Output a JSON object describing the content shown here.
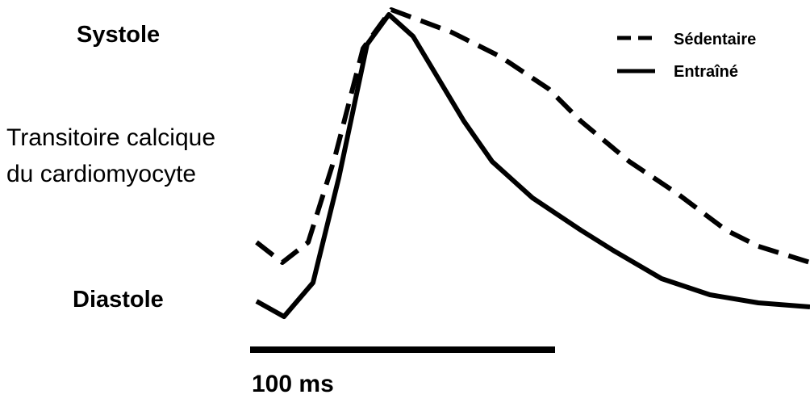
{
  "labels": {
    "systole": "Systole",
    "diastole": "Diastole",
    "y_label": [
      "Transitoire calcique",
      "du cardiomyocyte"
    ]
  },
  "legend": [
    "Sédentaire",
    "Entraîné"
  ],
  "scale_bar": "100 ms"
}
